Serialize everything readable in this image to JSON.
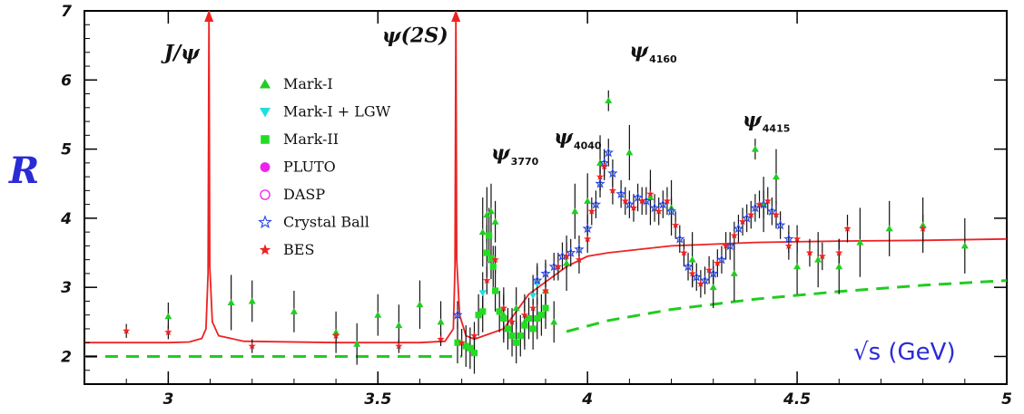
{
  "chart_data": {
    "type": "scatter",
    "ylabel": "R",
    "xlabel": "√s (GeV)",
    "xlim": [
      2.8,
      5.0
    ],
    "ylim": [
      1.6,
      7.0
    ],
    "x_ticks": [
      3,
      3.5,
      4,
      4.5,
      5
    ],
    "x_tick_labels": [
      "3",
      "3.5",
      "4",
      "4.5",
      "5"
    ],
    "y_ticks": [
      2,
      3,
      4,
      5,
      6,
      7
    ],
    "y_tick_labels": [
      "2",
      "3",
      "4",
      "5",
      "6",
      "7"
    ],
    "grid": false,
    "legend_position": "top-left",
    "legend": [
      {
        "label": "Mark-I",
        "marker": "triangle-up",
        "color": "#22cc22"
      },
      {
        "label": "Mark-I + LGW",
        "marker": "triangle-down",
        "color": "#22dddd"
      },
      {
        "label": "Mark-II",
        "marker": "square",
        "color": "#22dd22"
      },
      {
        "label": "PLUTO",
        "marker": "circle",
        "color": "#ee22ee"
      },
      {
        "label": "DASP",
        "marker": "circle-open",
        "color": "#ee22ee"
      },
      {
        "label": "Crystal Ball",
        "marker": "star-open",
        "color": "#2244ee"
      },
      {
        "label": "BES",
        "marker": "star",
        "color": "#ee2222"
      }
    ],
    "annotations": [
      {
        "text": "J/ψ",
        "sub": "",
        "x": 2.99,
        "y": 6.3
      },
      {
        "text": "ψ(2S)",
        "sub": "",
        "x": 3.51,
        "y": 6.55
      },
      {
        "text": "ψ",
        "sub": "3770",
        "x": 3.77,
        "y": 4.85
      },
      {
        "text": "ψ",
        "sub": "4040",
        "x": 3.92,
        "y": 5.08
      },
      {
        "text": "ψ",
        "sub": "4160",
        "x": 4.1,
        "y": 6.33
      },
      {
        "text": "ψ",
        "sub": "4415",
        "x": 4.37,
        "y": 5.33
      }
    ],
    "series": [
      {
        "name": "Mark-I",
        "marker": "triangle-up",
        "color": "#22cc22",
        "points": [
          [
            3.0,
            2.58,
            0.2
          ],
          [
            3.15,
            2.78,
            0.4
          ],
          [
            3.2,
            2.8,
            0.3
          ],
          [
            3.3,
            2.65,
            0.3
          ],
          [
            3.4,
            2.35,
            0.3
          ],
          [
            3.45,
            2.18,
            0.3
          ],
          [
            3.5,
            2.6,
            0.3
          ],
          [
            3.55,
            2.45,
            0.3
          ],
          [
            3.6,
            2.75,
            0.35
          ],
          [
            3.65,
            2.5,
            0.3
          ],
          [
            3.75,
            3.8,
            0.5
          ],
          [
            3.76,
            4.05,
            0.4
          ],
          [
            3.77,
            4.1,
            0.4
          ],
          [
            3.78,
            3.95,
            0.3
          ],
          [
            3.8,
            2.6,
            0.4
          ],
          [
            3.85,
            2.5,
            0.4
          ],
          [
            3.9,
            2.95,
            0.4
          ],
          [
            3.95,
            3.35,
            0.4
          ],
          [
            3.97,
            4.1,
            0.4
          ],
          [
            4.0,
            4.25,
            0.4
          ],
          [
            4.03,
            4.8,
            0.4
          ],
          [
            4.05,
            5.7,
            0.15
          ],
          [
            4.1,
            4.95,
            0.4
          ],
          [
            4.15,
            4.3,
            0.4
          ],
          [
            4.2,
            4.15,
            0.4
          ],
          [
            4.25,
            3.4,
            0.4
          ],
          [
            4.3,
            3.0,
            0.3
          ],
          [
            4.35,
            3.2,
            0.4
          ],
          [
            4.4,
            5.0,
            0.15
          ],
          [
            4.42,
            4.2,
            0.4
          ],
          [
            4.45,
            4.6,
            0.4
          ],
          [
            4.5,
            3.3,
            0.4
          ],
          [
            4.55,
            3.4,
            0.4
          ],
          [
            4.6,
            3.3,
            0.4
          ],
          [
            4.65,
            3.65,
            0.5
          ],
          [
            4.72,
            3.85,
            0.4
          ],
          [
            4.8,
            3.9,
            0.4
          ],
          [
            4.9,
            3.6,
            0.4
          ],
          [
            3.92,
            2.5,
            0.3
          ],
          [
            3.83,
            2.7,
            0.3
          ]
        ]
      },
      {
        "name": "Mark-I + LGW",
        "marker": "triangle-down",
        "color": "#22dddd",
        "points": [
          [
            3.75,
            2.92,
            0.3
          ],
          [
            3.87,
            2.88,
            0.3
          ],
          [
            3.88,
            3.05,
            0.3
          ]
        ]
      },
      {
        "name": "Mark-II",
        "marker": "square",
        "color": "#22dd22",
        "points": [
          [
            3.69,
            2.2,
            0.3
          ],
          [
            3.71,
            2.15,
            0.3
          ],
          [
            3.72,
            2.12,
            0.3
          ],
          [
            3.73,
            2.05,
            0.3
          ],
          [
            3.74,
            2.6,
            0.3
          ],
          [
            3.75,
            2.65,
            0.3
          ],
          [
            3.76,
            3.5,
            0.4
          ],
          [
            3.765,
            3.75,
            0.4
          ],
          [
            3.77,
            3.42,
            0.3
          ],
          [
            3.775,
            3.3,
            0.3
          ],
          [
            3.78,
            2.95,
            0.3
          ],
          [
            3.79,
            2.65,
            0.3
          ],
          [
            3.8,
            2.55,
            0.3
          ],
          [
            3.81,
            2.4,
            0.3
          ],
          [
            3.82,
            2.3,
            0.3
          ],
          [
            3.83,
            2.2,
            0.3
          ],
          [
            3.84,
            2.3,
            0.3
          ],
          [
            3.85,
            2.45,
            0.3
          ],
          [
            3.86,
            2.55,
            0.3
          ],
          [
            3.87,
            2.4,
            0.3
          ],
          [
            3.88,
            2.55,
            0.3
          ],
          [
            3.89,
            2.6,
            0.3
          ],
          [
            3.9,
            2.7,
            0.3
          ]
        ]
      },
      {
        "name": "Crystal Ball",
        "marker": "star-open",
        "color": "#2244ee",
        "points": [
          [
            3.69,
            2.6,
            0.2
          ],
          [
            3.88,
            3.1,
            0.2
          ],
          [
            3.9,
            3.2,
            0.2
          ],
          [
            3.92,
            3.3,
            0.2
          ],
          [
            3.94,
            3.45,
            0.2
          ],
          [
            3.96,
            3.5,
            0.2
          ],
          [
            3.98,
            3.55,
            0.2
          ],
          [
            4.0,
            3.85,
            0.2
          ],
          [
            4.02,
            4.2,
            0.2
          ],
          [
            4.03,
            4.5,
            0.2
          ],
          [
            4.04,
            4.8,
            0.2
          ],
          [
            4.05,
            4.95,
            0.2
          ],
          [
            4.06,
            4.65,
            0.2
          ],
          [
            4.08,
            4.35,
            0.2
          ],
          [
            4.1,
            4.2,
            0.2
          ],
          [
            4.12,
            4.3,
            0.2
          ],
          [
            4.14,
            4.25,
            0.2
          ],
          [
            4.16,
            4.15,
            0.2
          ],
          [
            4.18,
            4.2,
            0.2
          ],
          [
            4.2,
            4.1,
            0.2
          ],
          [
            4.22,
            3.7,
            0.2
          ],
          [
            4.24,
            3.3,
            0.2
          ],
          [
            4.26,
            3.15,
            0.2
          ],
          [
            4.28,
            3.1,
            0.2
          ],
          [
            4.3,
            3.2,
            0.2
          ],
          [
            4.32,
            3.4,
            0.2
          ],
          [
            4.34,
            3.6,
            0.2
          ],
          [
            4.36,
            3.85,
            0.2
          ],
          [
            4.38,
            4.0,
            0.2
          ],
          [
            4.4,
            4.15,
            0.2
          ],
          [
            4.42,
            4.2,
            0.2
          ],
          [
            4.44,
            4.1,
            0.2
          ],
          [
            4.46,
            3.9,
            0.2
          ],
          [
            4.48,
            3.7,
            0.2
          ]
        ]
      },
      {
        "name": "BES",
        "marker": "star",
        "color": "#ee2222",
        "points": [
          [
            2.9,
            2.37,
            0.1
          ],
          [
            3.0,
            2.35,
            0.1
          ],
          [
            3.2,
            2.15,
            0.1
          ],
          [
            3.4,
            2.3,
            0.1
          ],
          [
            3.55,
            2.15,
            0.1
          ],
          [
            3.65,
            2.25,
            0.1
          ],
          [
            3.7,
            2.2,
            0.2
          ],
          [
            3.73,
            2.3,
            0.2
          ],
          [
            3.76,
            3.1,
            0.2
          ],
          [
            3.78,
            3.4,
            0.2
          ],
          [
            3.8,
            2.7,
            0.2
          ],
          [
            3.82,
            2.5,
            0.2
          ],
          [
            3.85,
            2.6,
            0.2
          ],
          [
            3.87,
            2.7,
            0.2
          ],
          [
            3.9,
            2.95,
            0.2
          ],
          [
            3.93,
            3.3,
            0.2
          ],
          [
            3.95,
            3.45,
            0.2
          ],
          [
            3.98,
            3.4,
            0.2
          ],
          [
            4.0,
            3.7,
            0.2
          ],
          [
            4.01,
            4.1,
            0.2
          ],
          [
            4.03,
            4.6,
            0.2
          ],
          [
            4.04,
            4.75,
            0.2
          ],
          [
            4.06,
            4.4,
            0.2
          ],
          [
            4.09,
            4.25,
            0.2
          ],
          [
            4.11,
            4.15,
            0.2
          ],
          [
            4.13,
            4.25,
            0.2
          ],
          [
            4.15,
            4.35,
            0.2
          ],
          [
            4.17,
            4.1,
            0.2
          ],
          [
            4.19,
            4.25,
            0.2
          ],
          [
            4.21,
            3.9,
            0.2
          ],
          [
            4.23,
            3.5,
            0.2
          ],
          [
            4.25,
            3.2,
            0.2
          ],
          [
            4.27,
            3.05,
            0.2
          ],
          [
            4.29,
            3.25,
            0.2
          ],
          [
            4.31,
            3.35,
            0.2
          ],
          [
            4.33,
            3.6,
            0.2
          ],
          [
            4.35,
            3.75,
            0.2
          ],
          [
            4.37,
            3.95,
            0.2
          ],
          [
            4.39,
            4.05,
            0.2
          ],
          [
            4.41,
            4.2,
            0.2
          ],
          [
            4.43,
            4.25,
            0.2
          ],
          [
            4.45,
            4.05,
            0.2
          ],
          [
            4.48,
            3.6,
            0.2
          ],
          [
            4.5,
            3.7,
            0.2
          ],
          [
            4.53,
            3.5,
            0.2
          ],
          [
            4.56,
            3.45,
            0.2
          ],
          [
            4.6,
            3.5,
            0.2
          ],
          [
            4.62,
            3.85,
            0.2
          ],
          [
            4.8,
            3.85,
            0.2
          ]
        ]
      }
    ],
    "curves": [
      {
        "name": "",
        "style": "solid",
        "color": "#ee2222",
        "points": [
          [
            2.8,
            2.2
          ],
          [
            3.0,
            2.2
          ],
          [
            3.05,
            2.21
          ],
          [
            3.08,
            2.26
          ],
          [
            3.09,
            2.4
          ],
          [
            3.095,
            3.2
          ],
          [
            3.097,
            7.0
          ],
          [
            3.099,
            3.3
          ],
          [
            3.105,
            2.5
          ],
          [
            3.12,
            2.3
          ],
          [
            3.18,
            2.22
          ],
          [
            3.4,
            2.2
          ],
          [
            3.6,
            2.2
          ],
          [
            3.66,
            2.22
          ],
          [
            3.68,
            2.4
          ],
          [
            3.684,
            3.3
          ],
          [
            3.686,
            7.0
          ],
          [
            3.688,
            3.4
          ],
          [
            3.695,
            2.6
          ],
          [
            3.71,
            2.3
          ],
          [
            3.73,
            2.25
          ],
          [
            3.8,
            2.4
          ],
          [
            3.86,
            2.9
          ],
          [
            3.95,
            3.3
          ],
          [
            4.0,
            3.45
          ],
          [
            4.05,
            3.5
          ],
          [
            4.2,
            3.6
          ],
          [
            4.4,
            3.65
          ],
          [
            4.6,
            3.67
          ],
          [
            4.8,
            3.68
          ],
          [
            5.0,
            3.7
          ]
        ]
      },
      {
        "name": "",
        "style": "dashed",
        "color": "#22cc22",
        "points": [
          [
            2.8,
            2.0
          ],
          [
            3.7,
            2.0
          ]
        ]
      },
      {
        "name": "",
        "style": "dashed",
        "color": "#22cc22",
        "points": [
          [
            3.95,
            2.36
          ],
          [
            4.05,
            2.52
          ],
          [
            4.2,
            2.68
          ],
          [
            4.4,
            2.83
          ],
          [
            4.6,
            2.94
          ],
          [
            4.8,
            3.03
          ],
          [
            5.0,
            3.1
          ]
        ]
      }
    ]
  }
}
